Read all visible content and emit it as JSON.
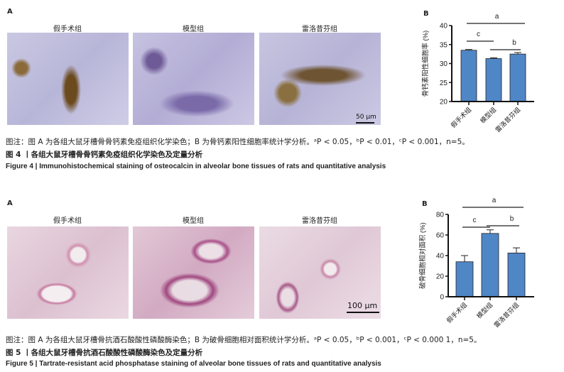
{
  "fig4": {
    "panel_a": "A",
    "panel_b": "B",
    "groups": [
      "假手术组",
      "模型组",
      "雷洛昔芬组"
    ],
    "scalebar": "50 μm",
    "note": "图注：图 A 为各组大鼠牙槽骨骨钙素免疫组织化学染色；B 为骨钙素阳性细胞率统计学分析。ᵃP < 0.05，ᵇP < 0.01，ᶜP < 0.001，n=5。",
    "title_cn": "图 4 丨各组大鼠牙槽骨骨钙素免疫组织化学染色及定量分析",
    "title_en": "Figure 4  |  Immunohistochemical staining of osteocalcin in alveolar bone tissues of rats and quantitative analysis"
  },
  "fig5": {
    "panel_a": "A",
    "panel_b": "B",
    "groups": [
      "假手术组",
      "模型组",
      "雷洛昔芬组"
    ],
    "scalebar": "100 μm",
    "note": "图注：图 A 为各组大鼠牙槽骨抗酒石酸酸性磷酸酶染色；B 为破骨细胞相对面积统计学分析。ᵃP < 0.05，ᵇP < 0.001，ᶜP < 0.000 1，n=5。",
    "title_cn": "图 5 丨各组大鼠牙槽骨抗酒石酸酸性磷酸酶染色及定量分析",
    "title_en": "Figure 5  |  Tartrate-resistant acid phosphatase staining of alveolar bone tissues of rats and quantitative analysis"
  },
  "chart_data": [
    {
      "type": "bar",
      "categories": [
        "假手术组",
        "模型组",
        "雷洛昔芬组"
      ],
      "values": [
        33.5,
        31.3,
        32.5
      ],
      "errors": [
        0.2,
        0.2,
        0.4
      ],
      "ylabel": "骨钙素阳性细胞率 (%)",
      "ylim": [
        20,
        40
      ],
      "yticks": [
        20,
        25,
        30,
        35,
        40
      ],
      "bar_color": "#4f86c6",
      "significance": [
        {
          "from": 0,
          "to": 2,
          "label": "a"
        },
        {
          "from": 0,
          "to": 1,
          "label": "c"
        },
        {
          "from": 1,
          "to": 2,
          "label": "b"
        }
      ]
    },
    {
      "type": "bar",
      "categories": [
        "假手术组",
        "模型组",
        "雷洛昔芬组"
      ],
      "values": [
        34,
        61.5,
        42.5
      ],
      "errors": [
        6,
        3.5,
        5
      ],
      "ylabel": "破骨细胞相对面积 (%)",
      "ylim": [
        0,
        80
      ],
      "yticks": [
        0,
        20,
        40,
        60,
        80
      ],
      "bar_color": "#4f86c6",
      "significance": [
        {
          "from": 0,
          "to": 2,
          "label": "a"
        },
        {
          "from": 0,
          "to": 1,
          "label": "c"
        },
        {
          "from": 1,
          "to": 2,
          "label": "b"
        }
      ]
    }
  ]
}
